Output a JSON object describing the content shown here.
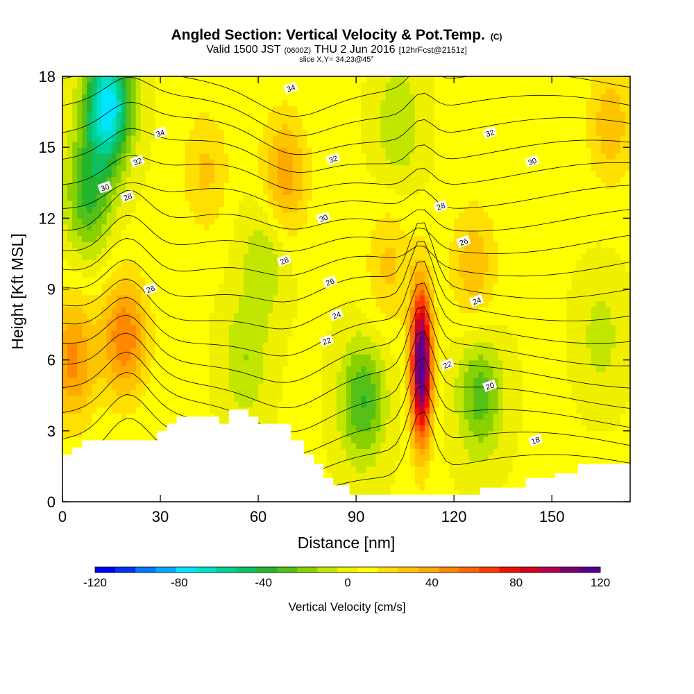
{
  "header": {
    "title": "Angled Section: Vertical Velocity & Pot.Temp.",
    "title_suffix": "(C)",
    "valid_prefix": "Valid 1500 JST",
    "valid_utc": "(0600Z)",
    "valid_date": "THU 2 Jun 2016",
    "forecast": "[12hrFcst@2151z]",
    "slice": "slice X,Y= 34,23@45°"
  },
  "chart_data": {
    "type": "heatmap",
    "title": "Angled Section: Vertical Velocity & Pot.Temp. (C)",
    "xlabel": "Distance [nm]",
    "ylabel": "Height [Kft MSL]",
    "xlim": [
      0,
      174
    ],
    "ylim": [
      0,
      18
    ],
    "x_ticks": [
      0,
      30,
      60,
      90,
      120,
      150
    ],
    "y_ticks": [
      0,
      3,
      6,
      9,
      12,
      15,
      18
    ],
    "colorbar": {
      "label": "Vertical Velocity [cm/s]",
      "range": [
        -120,
        120
      ],
      "tick_values": [
        -120,
        -80,
        -40,
        0,
        40,
        80,
        120
      ],
      "tick_labels": [
        "-120",
        "-80",
        "-40",
        "0",
        "40",
        "80",
        "120"
      ],
      "colors": [
        "#0000ee",
        "#0033ee",
        "#0077ff",
        "#00aaff",
        "#00e5ff",
        "#00e0c8",
        "#00d094",
        "#10c060",
        "#22b42c",
        "#55c018",
        "#88d000",
        "#c2e600",
        "#eef000",
        "#ffff00",
        "#ffe000",
        "#ffc400",
        "#ffa800",
        "#ff8800",
        "#ff6400",
        "#ff3800",
        "#ee1000",
        "#d00020",
        "#b00050",
        "#7a006e",
        "#560090"
      ]
    },
    "vertical_velocity_centers": [
      {
        "x": 14,
        "y": 16.8,
        "w": -85
      },
      {
        "x": 8,
        "y": 13.0,
        "w": -40
      },
      {
        "x": 3,
        "y": 6.0,
        "w": 40
      },
      {
        "x": 19,
        "y": 7.0,
        "w": 45
      },
      {
        "x": 68,
        "y": 13.8,
        "w": 35
      },
      {
        "x": 62,
        "y": 10.5,
        "w": -20
      },
      {
        "x": 56,
        "y": 6.0,
        "w": -20
      },
      {
        "x": 92,
        "y": 4.3,
        "w": -40
      },
      {
        "x": 110,
        "y": 5.8,
        "w": 120
      },
      {
        "x": 128,
        "y": 4.5,
        "w": -35
      },
      {
        "x": 126,
        "y": 10.0,
        "w": 25
      },
      {
        "x": 100,
        "y": 10.0,
        "w": 20
      },
      {
        "x": 168,
        "y": 16.0,
        "w": 25
      },
      {
        "x": 165,
        "y": 7.0,
        "w": -15
      },
      {
        "x": 44,
        "y": 14.0,
        "w": 20
      },
      {
        "x": 103,
        "y": 16.0,
        "w": -20
      }
    ],
    "potential_temperature_labels": [
      {
        "x": 27,
        "y": 9.0,
        "label": "26"
      },
      {
        "x": 68,
        "y": 10.2,
        "label": "28"
      },
      {
        "x": 82,
        "y": 9.3,
        "label": "26"
      },
      {
        "x": 84,
        "y": 7.9,
        "label": "24"
      },
      {
        "x": 81,
        "y": 6.8,
        "label": "22"
      },
      {
        "x": 127,
        "y": 8.5,
        "label": "24"
      },
      {
        "x": 123,
        "y": 11.0,
        "label": "26"
      },
      {
        "x": 116,
        "y": 12.5,
        "label": "28"
      },
      {
        "x": 118,
        "y": 5.8,
        "label": "22"
      },
      {
        "x": 131,
        "y": 4.9,
        "label": "20"
      },
      {
        "x": 145,
        "y": 2.6,
        "label": "18"
      },
      {
        "x": 13,
        "y": 13.3,
        "label": "30"
      },
      {
        "x": 20,
        "y": 12.9,
        "label": "28"
      },
      {
        "x": 23,
        "y": 14.4,
        "label": "32"
      },
      {
        "x": 30,
        "y": 15.6,
        "label": "34"
      },
      {
        "x": 70,
        "y": 17.5,
        "label": "34"
      },
      {
        "x": 83,
        "y": 14.5,
        "label": "32"
      },
      {
        "x": 80,
        "y": 12.0,
        "label": "30"
      },
      {
        "x": 131,
        "y": 15.6,
        "label": "32"
      },
      {
        "x": 144,
        "y": 14.4,
        "label": "30"
      }
    ]
  }
}
